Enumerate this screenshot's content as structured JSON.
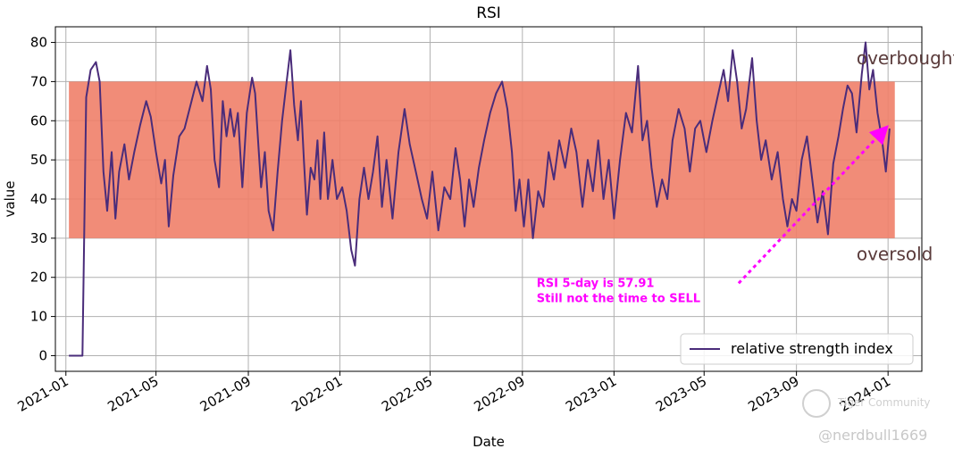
{
  "chart_data": {
    "type": "line",
    "title": "RSI",
    "xlabel": "Date",
    "ylabel": "value",
    "ylim": [
      -4,
      84
    ],
    "xlim": [
      "2020-12-18",
      "2024-02-15"
    ],
    "y_ticks": [
      0,
      10,
      20,
      30,
      40,
      50,
      60,
      70,
      80
    ],
    "x_ticks": [
      "2021-01",
      "2021-05",
      "2021-09",
      "2022-01",
      "2022-05",
      "2022-09",
      "2023-01",
      "2023-05",
      "2023-09",
      "2024-01"
    ],
    "grid": true,
    "legend_position": "lower-right",
    "band": {
      "from": 30,
      "to": 70,
      "x_start": "2021-01-05",
      "x_end": "2024-01-10",
      "color": "#f08069"
    },
    "series": [
      {
        "name": "relative strength index",
        "color": "#4a2c7a",
        "points": [
          [
            "2021-01-05",
            0
          ],
          [
            "2021-01-18",
            0
          ],
          [
            "2021-01-23",
            0
          ],
          [
            "2021-01-28",
            66
          ],
          [
            "2021-02-03",
            73
          ],
          [
            "2021-02-10",
            75
          ],
          [
            "2021-02-15",
            70
          ],
          [
            "2021-02-20",
            47
          ],
          [
            "2021-02-25",
            37
          ],
          [
            "2021-03-03",
            52
          ],
          [
            "2021-03-08",
            35
          ],
          [
            "2021-03-13",
            47
          ],
          [
            "2021-03-20",
            54
          ],
          [
            "2021-03-26",
            45
          ],
          [
            "2021-04-02",
            52
          ],
          [
            "2021-04-10",
            59
          ],
          [
            "2021-04-18",
            65
          ],
          [
            "2021-04-24",
            61
          ],
          [
            "2021-05-01",
            52
          ],
          [
            "2021-05-08",
            44
          ],
          [
            "2021-05-13",
            50
          ],
          [
            "2021-05-18",
            33
          ],
          [
            "2021-05-24",
            46
          ],
          [
            "2021-06-01",
            56
          ],
          [
            "2021-06-08",
            58
          ],
          [
            "2021-06-16",
            64
          ],
          [
            "2021-06-24",
            70
          ],
          [
            "2021-07-02",
            65
          ],
          [
            "2021-07-08",
            74
          ],
          [
            "2021-07-13",
            68
          ],
          [
            "2021-07-18",
            50
          ],
          [
            "2021-07-24",
            43
          ],
          [
            "2021-07-29",
            65
          ],
          [
            "2021-08-03",
            56
          ],
          [
            "2021-08-08",
            63
          ],
          [
            "2021-08-13",
            56
          ],
          [
            "2021-08-18",
            62
          ],
          [
            "2021-08-24",
            43
          ],
          [
            "2021-08-30",
            62
          ],
          [
            "2021-09-06",
            71
          ],
          [
            "2021-09-10",
            67
          ],
          [
            "2021-09-14",
            55
          ],
          [
            "2021-09-18",
            43
          ],
          [
            "2021-09-23",
            52
          ],
          [
            "2021-09-28",
            37
          ],
          [
            "2021-10-04",
            32
          ],
          [
            "2021-10-10",
            47
          ],
          [
            "2021-10-16",
            60
          ],
          [
            "2021-10-22",
            70
          ],
          [
            "2021-10-27",
            78
          ],
          [
            "2021-11-01",
            64
          ],
          [
            "2021-11-06",
            55
          ],
          [
            "2021-11-10",
            65
          ],
          [
            "2021-11-14",
            50
          ],
          [
            "2021-11-18",
            36
          ],
          [
            "2021-11-23",
            48
          ],
          [
            "2021-11-28",
            45
          ],
          [
            "2021-12-02",
            55
          ],
          [
            "2021-12-06",
            40
          ],
          [
            "2021-12-11",
            57
          ],
          [
            "2021-12-16",
            40
          ],
          [
            "2021-12-22",
            50
          ],
          [
            "2021-12-28",
            40
          ],
          [
            "2022-01-04",
            43
          ],
          [
            "2022-01-10",
            37
          ],
          [
            "2022-01-16",
            27
          ],
          [
            "2022-01-21",
            23
          ],
          [
            "2022-01-27",
            40
          ],
          [
            "2022-02-02",
            48
          ],
          [
            "2022-02-08",
            40
          ],
          [
            "2022-02-14",
            47
          ],
          [
            "2022-02-20",
            56
          ],
          [
            "2022-02-26",
            38
          ],
          [
            "2022-03-04",
            50
          ],
          [
            "2022-03-12",
            35
          ],
          [
            "2022-03-20",
            52
          ],
          [
            "2022-03-28",
            63
          ],
          [
            "2022-04-04",
            54
          ],
          [
            "2022-04-12",
            47
          ],
          [
            "2022-04-20",
            40
          ],
          [
            "2022-04-27",
            35
          ],
          [
            "2022-05-04",
            47
          ],
          [
            "2022-05-12",
            32
          ],
          [
            "2022-05-20",
            43
          ],
          [
            "2022-05-28",
            40
          ],
          [
            "2022-06-04",
            53
          ],
          [
            "2022-06-10",
            45
          ],
          [
            "2022-06-16",
            33
          ],
          [
            "2022-06-22",
            45
          ],
          [
            "2022-06-28",
            38
          ],
          [
            "2022-07-05",
            48
          ],
          [
            "2022-07-12",
            55
          ],
          [
            "2022-07-20",
            62
          ],
          [
            "2022-07-28",
            67
          ],
          [
            "2022-08-05",
            70
          ],
          [
            "2022-08-12",
            63
          ],
          [
            "2022-08-18",
            52
          ],
          [
            "2022-08-23",
            37
          ],
          [
            "2022-08-28",
            45
          ],
          [
            "2022-09-03",
            33
          ],
          [
            "2022-09-09",
            45
          ],
          [
            "2022-09-15",
            30
          ],
          [
            "2022-09-22",
            42
          ],
          [
            "2022-09-29",
            38
          ],
          [
            "2022-10-06",
            52
          ],
          [
            "2022-10-13",
            45
          ],
          [
            "2022-10-20",
            55
          ],
          [
            "2022-10-28",
            48
          ],
          [
            "2022-11-05",
            58
          ],
          [
            "2022-11-12",
            52
          ],
          [
            "2022-11-20",
            38
          ],
          [
            "2022-11-27",
            50
          ],
          [
            "2022-12-04",
            42
          ],
          [
            "2022-12-11",
            55
          ],
          [
            "2022-12-18",
            40
          ],
          [
            "2022-12-25",
            50
          ],
          [
            "2023-01-01",
            35
          ],
          [
            "2023-01-09",
            50
          ],
          [
            "2023-01-17",
            62
          ],
          [
            "2023-01-25",
            57
          ],
          [
            "2023-02-02",
            74
          ],
          [
            "2023-02-08",
            55
          ],
          [
            "2023-02-14",
            60
          ],
          [
            "2023-02-20",
            48
          ],
          [
            "2023-02-27",
            38
          ],
          [
            "2023-03-06",
            45
          ],
          [
            "2023-03-13",
            40
          ],
          [
            "2023-03-20",
            55
          ],
          [
            "2023-03-28",
            63
          ],
          [
            "2023-04-05",
            58
          ],
          [
            "2023-04-12",
            47
          ],
          [
            "2023-04-19",
            58
          ],
          [
            "2023-04-26",
            60
          ],
          [
            "2023-05-04",
            52
          ],
          [
            "2023-05-12",
            60
          ],
          [
            "2023-05-20",
            67
          ],
          [
            "2023-05-27",
            73
          ],
          [
            "2023-06-02",
            65
          ],
          [
            "2023-06-08",
            78
          ],
          [
            "2023-06-14",
            70
          ],
          [
            "2023-06-20",
            58
          ],
          [
            "2023-06-26",
            63
          ],
          [
            "2023-07-04",
            76
          ],
          [
            "2023-07-10",
            60
          ],
          [
            "2023-07-16",
            50
          ],
          [
            "2023-07-22",
            55
          ],
          [
            "2023-07-30",
            45
          ],
          [
            "2023-08-07",
            52
          ],
          [
            "2023-08-14",
            40
          ],
          [
            "2023-08-20",
            33
          ],
          [
            "2023-08-26",
            40
          ],
          [
            "2023-09-01",
            37
          ],
          [
            "2023-09-08",
            50
          ],
          [
            "2023-09-15",
            56
          ],
          [
            "2023-09-22",
            45
          ],
          [
            "2023-09-29",
            34
          ],
          [
            "2023-10-06",
            42
          ],
          [
            "2023-10-13",
            31
          ],
          [
            "2023-10-20",
            49
          ],
          [
            "2023-10-27",
            56
          ],
          [
            "2023-11-02",
            63
          ],
          [
            "2023-11-08",
            69
          ],
          [
            "2023-11-14",
            67
          ],
          [
            "2023-11-20",
            57
          ],
          [
            "2023-11-27",
            72
          ],
          [
            "2023-12-02",
            80
          ],
          [
            "2023-12-07",
            68
          ],
          [
            "2023-12-12",
            73
          ],
          [
            "2023-12-18",
            62
          ],
          [
            "2023-12-24",
            55
          ],
          [
            "2023-12-29",
            47
          ],
          [
            "2024-01-03",
            58
          ]
        ]
      }
    ],
    "annotations": [
      {
        "text": "overbought",
        "x": "2023-11-20",
        "y": 76,
        "color": "#5a3b3b"
      },
      {
        "text": "oversold",
        "x": "2023-11-20",
        "y": 26,
        "color": "#5a3b3b"
      },
      {
        "text_lines": [
          "RSI 5-day is 57.91",
          "Still not the time to SELL"
        ],
        "x": "2022-09-20",
        "y": 18.5,
        "arrow_from": [
          "2023-06-16",
          18.5
        ],
        "arrow_to": [
          "2023-12-26",
          57.5
        ],
        "color": "#ff00ff"
      }
    ]
  },
  "watermark": {
    "community": "Tiger Community",
    "handle": "@nerdbull1669"
  }
}
